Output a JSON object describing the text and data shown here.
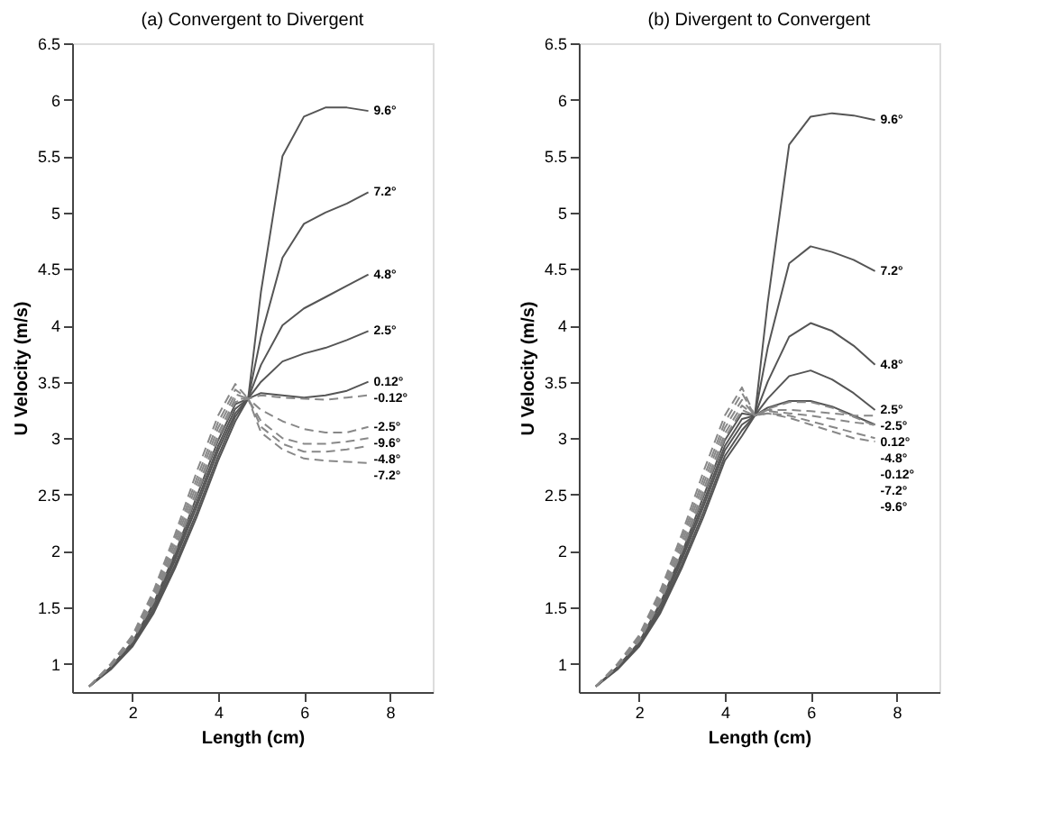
{
  "chart_data": [
    {
      "type": "line",
      "title": "(a) Convergent to Divergent",
      "xlabel": "Length (cm)",
      "ylabel": "U Velocity (m/s)",
      "xlim": [
        0.6,
        9
      ],
      "ylim": [
        0.75,
        6.5
      ],
      "xticks": [
        2,
        4,
        6,
        8
      ],
      "yticks": [
        1,
        1.5,
        2,
        2.5,
        3,
        3.5,
        4,
        4.5,
        5,
        5.5,
        6,
        6.5
      ],
      "x": [
        1,
        1.5,
        2,
        2.5,
        3,
        3.5,
        4,
        4.4,
        4.7,
        5,
        5.5,
        6,
        6.5,
        7,
        7.5
      ],
      "series": [
        {
          "name": "9.6°",
          "color": "#555555",
          "line_style": "solid",
          "values": [
            0.8,
            0.95,
            1.15,
            1.45,
            1.85,
            2.3,
            2.8,
            3.15,
            3.35,
            4.3,
            5.5,
            5.85,
            5.93,
            5.93,
            5.9
          ]
        },
        {
          "name": "7.2°",
          "color": "#555555",
          "line_style": "solid",
          "values": [
            0.8,
            0.96,
            1.16,
            1.47,
            1.88,
            2.34,
            2.84,
            3.19,
            3.35,
            3.9,
            4.6,
            4.9,
            5.0,
            5.08,
            5.18
          ]
        },
        {
          "name": "4.8°",
          "color": "#555555",
          "line_style": "solid",
          "values": [
            0.8,
            0.96,
            1.17,
            1.49,
            1.92,
            2.39,
            2.89,
            3.22,
            3.35,
            3.65,
            4.0,
            4.15,
            4.25,
            4.35,
            4.45
          ]
        },
        {
          "name": "2.5°",
          "color": "#555555",
          "line_style": "solid",
          "values": [
            0.8,
            0.97,
            1.18,
            1.52,
            1.95,
            2.43,
            2.93,
            3.26,
            3.35,
            3.5,
            3.68,
            3.75,
            3.8,
            3.87,
            3.95
          ]
        },
        {
          "name": "0.12°",
          "color": "#555555",
          "line_style": "solid",
          "values": [
            0.8,
            0.97,
            1.19,
            1.54,
            1.98,
            2.48,
            2.98,
            3.3,
            3.35,
            3.4,
            3.38,
            3.36,
            3.38,
            3.42,
            3.5
          ]
        },
        {
          "name": "-0.12°",
          "color": "#888888",
          "line_style": "dashed",
          "values": [
            0.8,
            0.98,
            1.2,
            1.55,
            2.0,
            2.5,
            3.0,
            3.32,
            3.35,
            3.38,
            3.36,
            3.35,
            3.34,
            3.36,
            3.38
          ]
        },
        {
          "name": "-2.5°",
          "color": "#888888",
          "line_style": "dashed",
          "values": [
            0.8,
            0.98,
            1.21,
            1.57,
            2.03,
            2.54,
            3.04,
            3.35,
            3.35,
            3.25,
            3.15,
            3.08,
            3.05,
            3.05,
            3.1
          ]
        },
        {
          "name": "-4.8°",
          "color": "#888888",
          "line_style": "dashed",
          "values": [
            0.8,
            0.99,
            1.22,
            1.59,
            2.07,
            2.59,
            3.09,
            3.39,
            3.35,
            3.1,
            2.95,
            2.88,
            2.88,
            2.9,
            2.93
          ]
        },
        {
          "name": "-7.2°",
          "color": "#888888",
          "line_style": "dashed",
          "values": [
            0.8,
            0.99,
            1.24,
            1.62,
            2.11,
            2.64,
            3.14,
            3.43,
            3.35,
            3.05,
            2.9,
            2.82,
            2.8,
            2.79,
            2.78
          ]
        },
        {
          "name": "-9.6°",
          "color": "#888888",
          "line_style": "dashed",
          "values": [
            0.8,
            1.0,
            1.25,
            1.65,
            2.15,
            2.7,
            3.2,
            3.48,
            3.35,
            3.15,
            3.0,
            2.95,
            2.95,
            2.97,
            3.0
          ]
        }
      ]
    },
    {
      "type": "line",
      "title": "(b) Divergent to Convergent",
      "xlabel": "Length (cm)",
      "ylabel": "U Velocity (m/s)",
      "xlim": [
        0.6,
        9
      ],
      "ylim": [
        0.75,
        6.5
      ],
      "xticks": [
        2,
        4,
        6,
        8
      ],
      "yticks": [
        1,
        1.5,
        2,
        2.5,
        3,
        3.5,
        4,
        4.5,
        5,
        5.5,
        6,
        6.5
      ],
      "x": [
        1,
        1.5,
        2,
        2.5,
        3,
        3.5,
        4,
        4.4,
        4.7,
        5,
        5.5,
        6,
        6.5,
        7,
        7.5
      ],
      "series": [
        {
          "name": "9.6°",
          "color": "#555555",
          "line_style": "solid",
          "values": [
            0.8,
            0.95,
            1.15,
            1.45,
            1.85,
            2.3,
            2.8,
            3.02,
            3.2,
            4.2,
            5.6,
            5.85,
            5.88,
            5.86,
            5.82
          ]
        },
        {
          "name": "7.2°",
          "color": "#555555",
          "line_style": "solid",
          "values": [
            0.8,
            0.96,
            1.16,
            1.47,
            1.88,
            2.34,
            2.84,
            3.07,
            3.2,
            3.8,
            4.55,
            4.7,
            4.65,
            4.58,
            4.48
          ]
        },
        {
          "name": "4.8°",
          "color": "#555555",
          "line_style": "solid",
          "values": [
            0.8,
            0.96,
            1.17,
            1.49,
            1.92,
            2.39,
            2.89,
            3.12,
            3.2,
            3.5,
            3.9,
            4.02,
            3.95,
            3.82,
            3.65
          ]
        },
        {
          "name": "2.5°",
          "color": "#555555",
          "line_style": "solid",
          "values": [
            0.8,
            0.97,
            1.18,
            1.52,
            1.95,
            2.43,
            2.93,
            3.17,
            3.2,
            3.35,
            3.55,
            3.6,
            3.52,
            3.4,
            3.25
          ]
        },
        {
          "name": "0.12°",
          "color": "#555555",
          "line_style": "solid",
          "values": [
            0.8,
            0.97,
            1.19,
            1.54,
            1.98,
            2.48,
            2.98,
            3.22,
            3.2,
            3.27,
            3.33,
            3.33,
            3.28,
            3.2,
            3.12
          ]
        },
        {
          "name": "-0.12°",
          "color": "#888888",
          "line_style": "dashed",
          "values": [
            0.8,
            0.98,
            1.2,
            1.55,
            2.0,
            2.5,
            3.0,
            3.25,
            3.2,
            3.26,
            3.32,
            3.32,
            3.27,
            3.19,
            3.11
          ]
        },
        {
          "name": "-2.5°",
          "color": "#888888",
          "line_style": "dashed",
          "values": [
            0.8,
            0.98,
            1.21,
            1.57,
            2.03,
            2.54,
            3.04,
            3.29,
            3.2,
            3.25,
            3.25,
            3.24,
            3.22,
            3.2,
            3.2
          ]
        },
        {
          "name": "-4.8°",
          "color": "#888888",
          "line_style": "dashed",
          "values": [
            0.8,
            0.99,
            1.22,
            1.59,
            2.07,
            2.59,
            3.09,
            3.34,
            3.2,
            3.24,
            3.22,
            3.2,
            3.17,
            3.14,
            3.12
          ]
        },
        {
          "name": "-7.2°",
          "color": "#888888",
          "line_style": "dashed",
          "values": [
            0.8,
            0.99,
            1.24,
            1.62,
            2.11,
            2.64,
            3.14,
            3.4,
            3.2,
            3.22,
            3.2,
            3.15,
            3.1,
            3.05,
            3.0
          ]
        },
        {
          "name": "-9.6°",
          "color": "#888888",
          "line_style": "dashed",
          "values": [
            0.8,
            1.0,
            1.25,
            1.65,
            2.15,
            2.7,
            3.2,
            3.45,
            3.2,
            3.22,
            3.18,
            3.12,
            3.06,
            3.0,
            2.97
          ]
        }
      ]
    }
  ]
}
